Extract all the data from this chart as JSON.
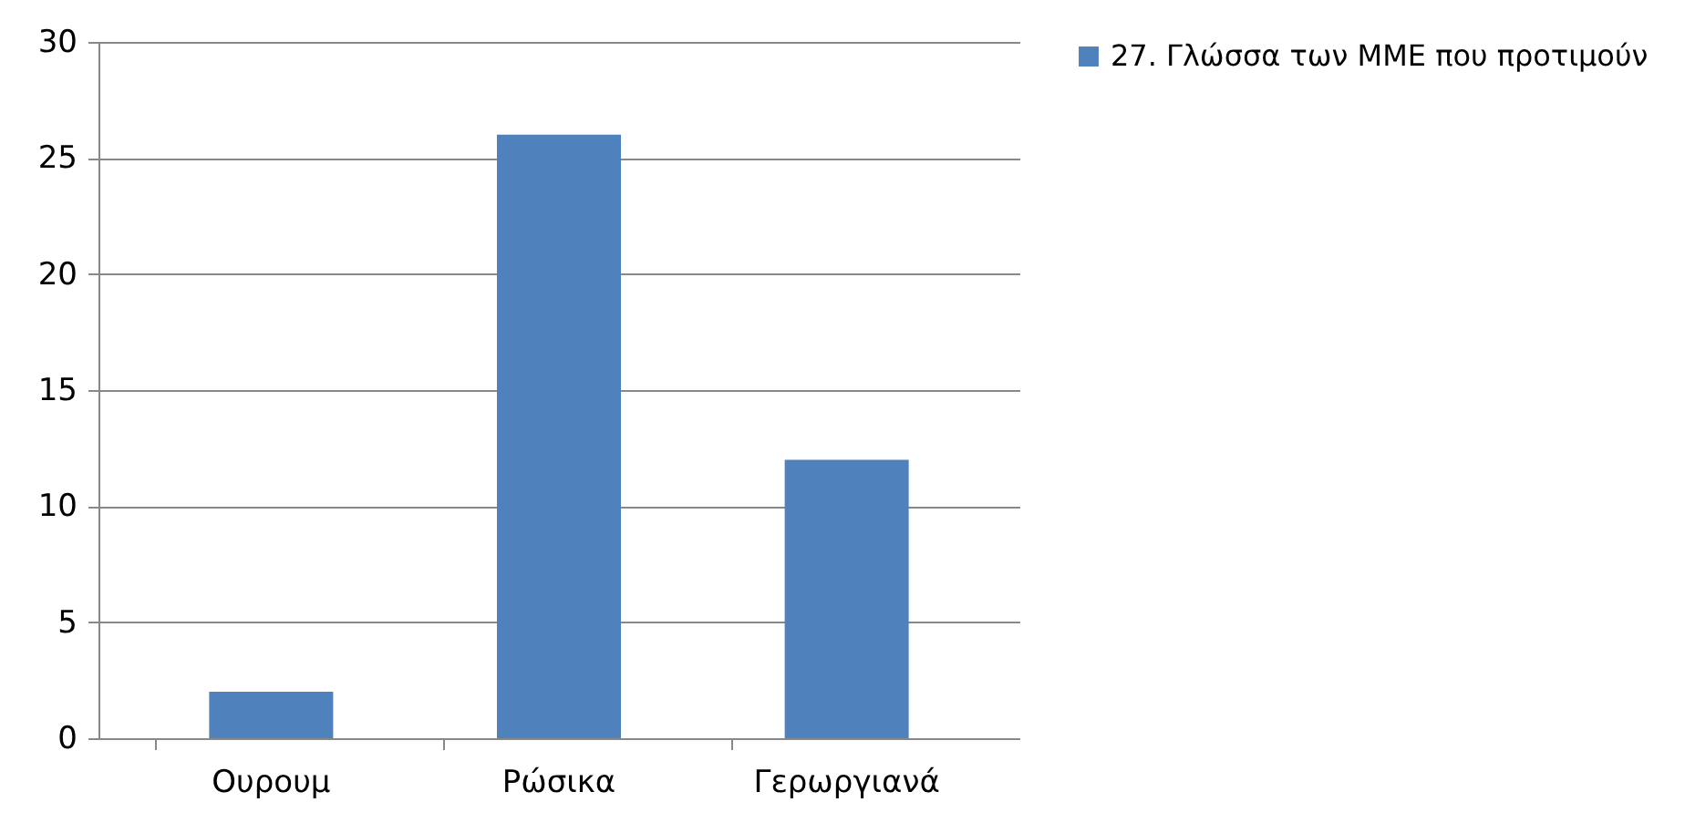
{
  "chart_data": {
    "type": "bar",
    "categories": [
      "Ουρουμ",
      "Ρώσικα",
      "Γερωργιανά"
    ],
    "series": [
      {
        "name": "27. Γλώσσα των ΜΜΕ που προτιμούν",
        "color": "#4f81bd",
        "values": [
          2,
          26,
          12
        ]
      }
    ],
    "ylim": [
      0,
      30
    ],
    "yticks": [
      0,
      5,
      10,
      15,
      20,
      25,
      30
    ],
    "grid": "y",
    "legend": "right"
  }
}
